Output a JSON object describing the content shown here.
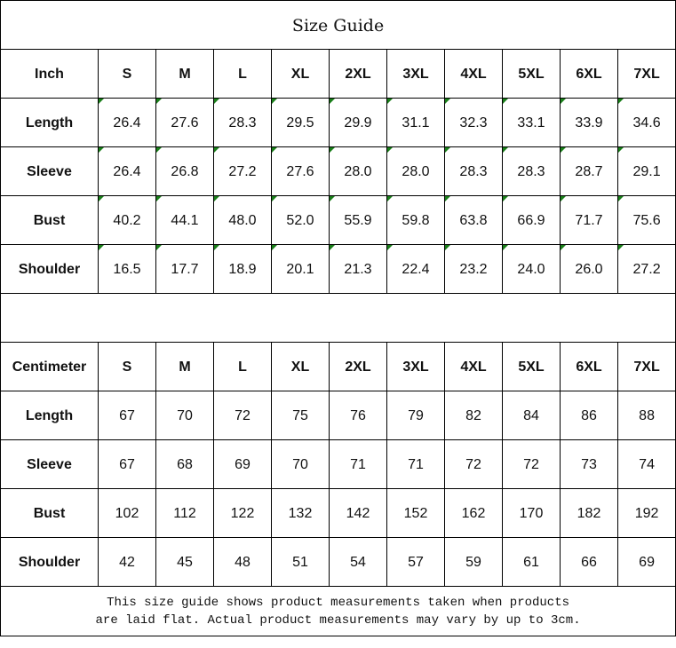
{
  "title": "Size Guide",
  "sizes": [
    "S",
    "M",
    "L",
    "XL",
    "2XL",
    "3XL",
    "4XL",
    "5XL",
    "6XL",
    "7XL"
  ],
  "inch": {
    "label": "Inch",
    "rows": [
      {
        "name": "Length",
        "values": [
          "26.4",
          "27.6",
          "28.3",
          "29.5",
          "29.9",
          "31.1",
          "32.3",
          "33.1",
          "33.9",
          "34.6"
        ]
      },
      {
        "name": "Sleeve",
        "values": [
          "26.4",
          "26.8",
          "27.2",
          "27.6",
          "28.0",
          "28.0",
          "28.3",
          "28.3",
          "28.7",
          "29.1"
        ]
      },
      {
        "name": "Bust",
        "values": [
          "40.2",
          "44.1",
          "48.0",
          "52.0",
          "55.9",
          "59.8",
          "63.8",
          "66.9",
          "71.7",
          "75.6"
        ]
      },
      {
        "name": "Shoulder",
        "values": [
          "16.5",
          "17.7",
          "18.9",
          "20.1",
          "21.3",
          "22.4",
          "23.2",
          "24.0",
          "26.0",
          "27.2"
        ]
      }
    ]
  },
  "centimeter": {
    "label": "Centimeter",
    "rows": [
      {
        "name": "Length",
        "values": [
          "67",
          "70",
          "72",
          "75",
          "76",
          "79",
          "82",
          "84",
          "86",
          "88"
        ]
      },
      {
        "name": "Sleeve",
        "values": [
          "67",
          "68",
          "69",
          "70",
          "71",
          "71",
          "72",
          "72",
          "73",
          "74"
        ]
      },
      {
        "name": "Bust",
        "values": [
          "102",
          "112",
          "122",
          "132",
          "142",
          "152",
          "162",
          "170",
          "182",
          "192"
        ]
      },
      {
        "name": "Shoulder",
        "values": [
          "42",
          "45",
          "48",
          "51",
          "54",
          "57",
          "59",
          "61",
          "66",
          "69"
        ]
      }
    ]
  },
  "note": {
    "line1": "This size guide shows product measurements taken when products",
    "line2": "are laid flat. Actual product measurements may vary by up to 3cm."
  },
  "colors": {
    "marker": "#1a7f1a",
    "border": "#000000"
  }
}
